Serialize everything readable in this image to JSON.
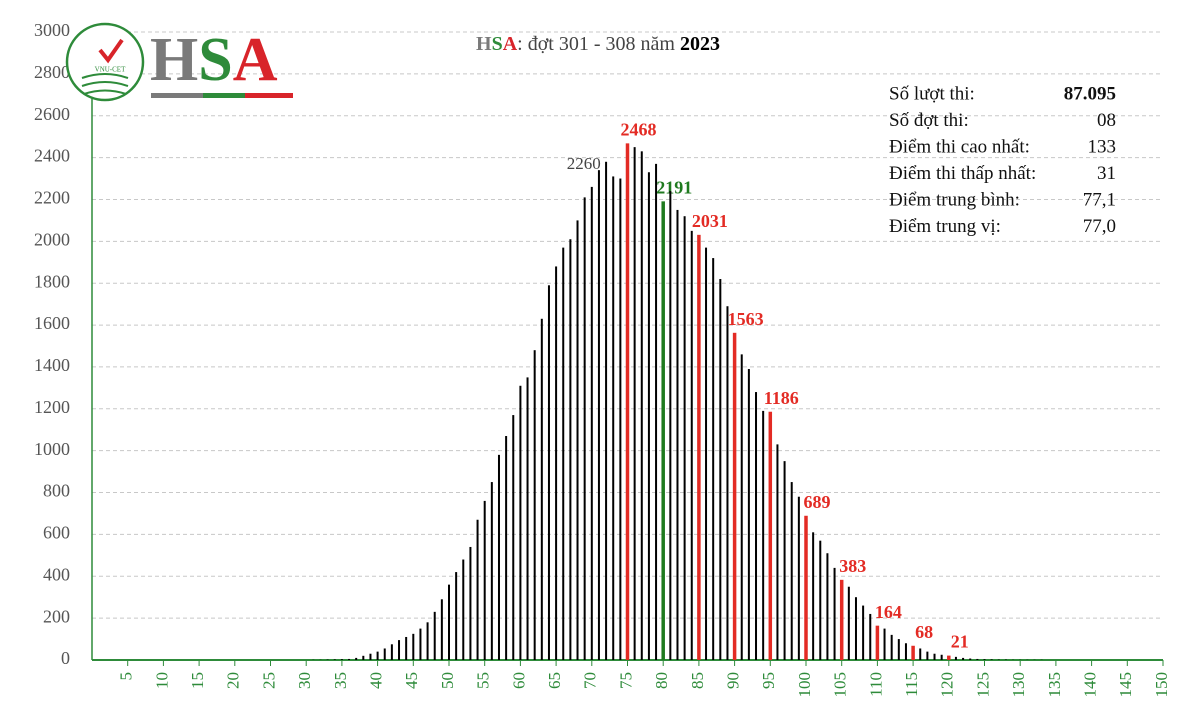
{
  "logo": {
    "letters": [
      "H",
      "S",
      "A"
    ],
    "emblem": "VNU-CET"
  },
  "chart_data": {
    "type": "bar",
    "title": [
      "H",
      "S",
      "A",
      ": đợt 301 - 308 năm ",
      "2023"
    ],
    "x": [
      31,
      32,
      33,
      34,
      35,
      36,
      37,
      38,
      39,
      40,
      41,
      42,
      43,
      44,
      45,
      46,
      47,
      48,
      49,
      50,
      51,
      52,
      53,
      54,
      55,
      56,
      57,
      58,
      59,
      60,
      61,
      62,
      63,
      64,
      65,
      66,
      67,
      68,
      69,
      70,
      71,
      72,
      73,
      74,
      75,
      76,
      77,
      78,
      79,
      80,
      81,
      82,
      83,
      84,
      85,
      86,
      87,
      88,
      89,
      90,
      91,
      92,
      93,
      94,
      95,
      96,
      97,
      98,
      99,
      100,
      101,
      102,
      103,
      104,
      105,
      106,
      107,
      108,
      109,
      110,
      111,
      112,
      113,
      114,
      115,
      116,
      117,
      118,
      119,
      120,
      121,
      122,
      123,
      124,
      125,
      126,
      127,
      128,
      129,
      130,
      131,
      132,
      133
    ],
    "values": [
      1,
      1,
      2,
      3,
      4,
      5,
      10,
      20,
      30,
      40,
      55,
      75,
      95,
      110,
      125,
      150,
      180,
      230,
      290,
      360,
      420,
      480,
      540,
      670,
      760,
      850,
      980,
      1070,
      1170,
      1310,
      1350,
      1480,
      1630,
      1790,
      1880,
      1970,
      2010,
      2100,
      2210,
      2260,
      2340,
      2380,
      2310,
      2300,
      2468,
      2450,
      2430,
      2330,
      2370,
      2191,
      2240,
      2150,
      2120,
      2050,
      2031,
      1970,
      1920,
      1820,
      1690,
      1563,
      1460,
      1390,
      1280,
      1190,
      1186,
      1030,
      950,
      850,
      780,
      689,
      610,
      570,
      510,
      440,
      383,
      350,
      300,
      260,
      220,
      164,
      150,
      120,
      100,
      80,
      68,
      55,
      40,
      30,
      25,
      21,
      15,
      10,
      7,
      5,
      4,
      3,
      2,
      2,
      1,
      1,
      1,
      1,
      1
    ],
    "value_labels": [
      null,
      null,
      null,
      null,
      null,
      null,
      null,
      null,
      null,
      null,
      null,
      null,
      null,
      null,
      null,
      null,
      null,
      null,
      null,
      null,
      null,
      null,
      null,
      null,
      null,
      null,
      null,
      null,
      null,
      null,
      null,
      null,
      null,
      null,
      null,
      null,
      null,
      null,
      null,
      "2260",
      null,
      null,
      null,
      null,
      "2468",
      null,
      null,
      null,
      null,
      "2191",
      null,
      null,
      null,
      null,
      "2031",
      null,
      null,
      null,
      null,
      "1563",
      null,
      null,
      null,
      null,
      "1186",
      null,
      null,
      null,
      null,
      "689",
      null,
      null,
      null,
      null,
      "383",
      null,
      null,
      null,
      null,
      "164",
      null,
      null,
      null,
      null,
      "68",
      null,
      null,
      null,
      null,
      "21",
      null,
      null,
      null,
      null,
      null,
      null,
      null,
      null,
      null,
      null,
      null,
      null,
      null
    ],
    "colors": [
      "#000",
      "#000",
      "#000",
      "#000",
      "#000",
      "#000",
      "#000",
      "#000",
      "#000",
      "#000",
      "#000",
      "#000",
      "#000",
      "#000",
      "#000",
      "#000",
      "#000",
      "#000",
      "#000",
      "#000",
      "#000",
      "#000",
      "#000",
      "#000",
      "#000",
      "#000",
      "#000",
      "#000",
      "#000",
      "#000",
      "#000",
      "#000",
      "#000",
      "#000",
      "#000",
      "#000",
      "#000",
      "#000",
      "#000",
      "#000",
      "#000",
      "#000",
      "#000",
      "#000",
      "#e32b24",
      "#000",
      "#000",
      "#000",
      "#000",
      "#1f7a1f",
      "#000",
      "#000",
      "#000",
      "#000",
      "#e32b24",
      "#000",
      "#000",
      "#000",
      "#000",
      "#e32b24",
      "#000",
      "#000",
      "#000",
      "#000",
      "#e32b24",
      "#000",
      "#000",
      "#000",
      "#000",
      "#e32b24",
      "#000",
      "#000",
      "#000",
      "#000",
      "#e32b24",
      "#000",
      "#000",
      "#000",
      "#000",
      "#e32b24",
      "#000",
      "#000",
      "#000",
      "#000",
      "#e32b24",
      "#000",
      "#000",
      "#000",
      "#000",
      "#e32b24",
      "#000",
      "#000",
      "#000",
      "#000",
      "#000",
      "#000",
      "#000",
      "#000",
      "#000",
      "#000",
      "#000",
      "#000",
      "#000"
    ],
    "xlim": [
      0,
      150
    ],
    "xticks": [
      5,
      10,
      15,
      20,
      25,
      30,
      35,
      40,
      45,
      50,
      55,
      60,
      65,
      70,
      75,
      80,
      85,
      90,
      95,
      100,
      105,
      110,
      115,
      120,
      125,
      130,
      135,
      140,
      145,
      150
    ],
    "ylim": [
      0,
      3000
    ],
    "yticks": [
      0,
      200,
      400,
      600,
      800,
      1000,
      1200,
      1400,
      1600,
      1800,
      2000,
      2200,
      2400,
      2600,
      2800,
      3000
    ],
    "grid": true,
    "stats": [
      [
        "Số lượt thi:",
        "87.095"
      ],
      [
        "Số đợt thi:",
        "08"
      ],
      [
        "Điểm thi cao nhất:",
        "133"
      ],
      [
        "Điểm thi thấp nhất:",
        "31"
      ],
      [
        "Điểm trung bình:",
        "77,1"
      ],
      [
        "Điểm trung vị:",
        "77,0"
      ]
    ]
  }
}
